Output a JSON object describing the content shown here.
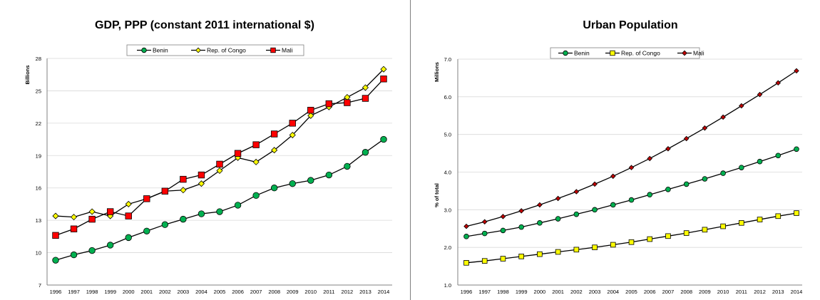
{
  "chart_data": [
    {
      "type": "line",
      "title": "GDP, PPP (constant 2011 international $)",
      "xlabel": "",
      "ylabel": "Billions",
      "ylabel2": "",
      "ylim": [
        7,
        28
      ],
      "yticks": [
        "7",
        "10",
        "13",
        "16",
        "19",
        "22",
        "25",
        "28"
      ],
      "ytick_values": [
        7,
        10,
        13,
        16,
        19,
        22,
        25,
        28
      ],
      "grid": true,
      "legend_position": "top",
      "categories": [
        "1996",
        "1997",
        "1998",
        "1999",
        "2000",
        "2001",
        "2002",
        "2003",
        "2004",
        "2005",
        "2006",
        "2007",
        "2008",
        "2009",
        "2010",
        "2011",
        "2012",
        "2013",
        "2014"
      ],
      "series": [
        {
          "name": "Benin",
          "color": "#00b050",
          "marker": "circle",
          "values": [
            9.3,
            9.8,
            10.2,
            10.7,
            11.4,
            12.0,
            12.6,
            13.1,
            13.6,
            13.8,
            14.4,
            15.3,
            16.0,
            16.4,
            16.7,
            17.2,
            18.0,
            19.3,
            20.5
          ]
        },
        {
          "name": "Rep. of Congo",
          "color": "#ffff00",
          "marker": "diamond",
          "values": [
            13.4,
            13.3,
            13.8,
            13.4,
            14.5,
            15.0,
            15.7,
            15.8,
            16.4,
            17.6,
            18.8,
            18.4,
            19.5,
            20.9,
            22.7,
            23.5,
            24.4,
            25.3,
            27.0
          ]
        },
        {
          "name": "Mali",
          "color": "#ff0000",
          "marker": "square",
          "values": [
            11.6,
            12.2,
            13.1,
            13.8,
            13.4,
            15.0,
            15.7,
            16.8,
            17.2,
            18.2,
            19.2,
            20.0,
            21.0,
            22.0,
            23.2,
            23.8,
            23.9,
            24.3,
            26.1
          ]
        }
      ]
    },
    {
      "type": "line",
      "title": "Urban Population",
      "xlabel": "",
      "ylabel": "Millions",
      "ylabel2": "% of total",
      "ylim": [
        1.0,
        7.0
      ],
      "yticks": [
        "1.0",
        "2.0",
        "3.0",
        "4.0",
        "5.0",
        "6.0",
        "7.0"
      ],
      "ytick_values": [
        1.0,
        2.0,
        3.0,
        4.0,
        5.0,
        6.0,
        7.0
      ],
      "grid": true,
      "legend_position": "top",
      "categories": [
        "1996",
        "1997",
        "1998",
        "1999",
        "2000",
        "2001",
        "2002",
        "2003",
        "2004",
        "2005",
        "2006",
        "2007",
        "2008",
        "2009",
        "2010",
        "2011",
        "2012",
        "2013",
        "2014"
      ],
      "series": [
        {
          "name": "Benin",
          "color": "#00b050",
          "marker": "circle",
          "values": [
            2.29,
            2.37,
            2.45,
            2.54,
            2.65,
            2.76,
            2.88,
            3.0,
            3.13,
            3.26,
            3.4,
            3.54,
            3.68,
            3.82,
            3.97,
            4.12,
            4.28,
            4.44,
            4.61
          ]
        },
        {
          "name": "Rep. of Congo",
          "color": "#ffff00",
          "marker": "square",
          "values": [
            1.59,
            1.64,
            1.7,
            1.76,
            1.82,
            1.88,
            1.94,
            2.0,
            2.07,
            2.14,
            2.22,
            2.3,
            2.38,
            2.47,
            2.56,
            2.65,
            2.74,
            2.83,
            2.91
          ]
        },
        {
          "name": "Mali",
          "color": "#c00000",
          "marker": "diamond",
          "values": [
            2.56,
            2.68,
            2.82,
            2.97,
            3.13,
            3.3,
            3.48,
            3.68,
            3.89,
            4.12,
            4.36,
            4.62,
            4.89,
            5.17,
            5.46,
            5.76,
            6.06,
            6.37,
            6.69
          ]
        }
      ]
    }
  ]
}
